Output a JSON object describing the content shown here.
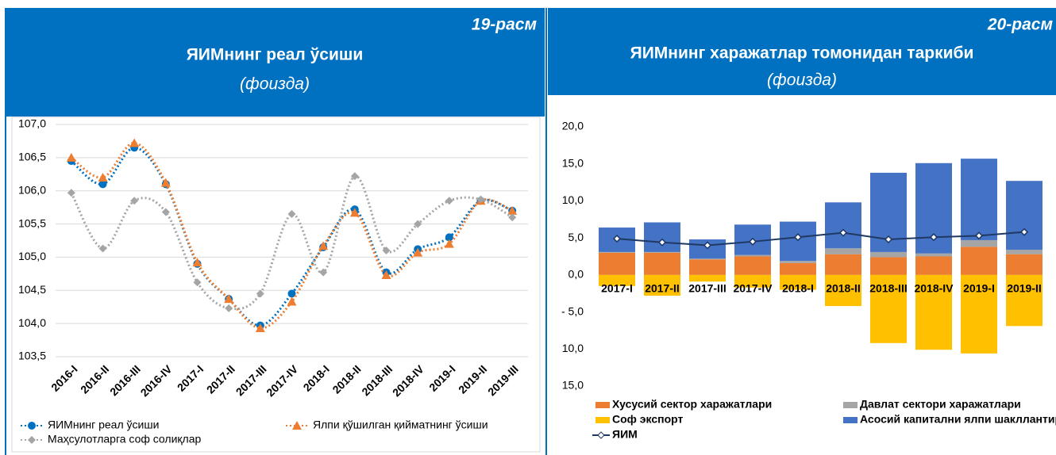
{
  "chart_data": [
    {
      "type": "line",
      "label": "19-расм",
      "title": "ЯИМнинг реал ўсиши",
      "subtitle": "(фоизда)",
      "categories": [
        "2016-I",
        "2016-II",
        "2016-III",
        "2016-IV",
        "2017-I",
        "2017-II",
        "2017-III",
        "2017-IV",
        "2018-I",
        "2018-II",
        "2018-III",
        "2018-IV",
        "2019-I",
        "2019-II",
        "2019-III"
      ],
      "series": [
        {
          "name": "ЯИМнинг реал ўсиши",
          "color": "#0070c0",
          "marker": "circle",
          "values": [
            106.45,
            106.1,
            106.65,
            106.1,
            104.9,
            104.37,
            103.97,
            104.45,
            105.15,
            105.72,
            104.77,
            105.12,
            105.3,
            105.85,
            105.7
          ]
        },
        {
          "name": "Ялпи қўшилган  қийматнинг ўсиши",
          "color": "#ed7d31",
          "marker": "triangle",
          "values": [
            106.5,
            106.2,
            106.72,
            106.12,
            104.92,
            104.37,
            103.93,
            104.33,
            105.17,
            105.67,
            104.73,
            105.07,
            105.2,
            105.85,
            105.7
          ]
        },
        {
          "name": "Маҳсулотларга соф солиқлар",
          "color": "#a5a5a5",
          "marker": "diamond",
          "values": [
            105.97,
            105.13,
            105.85,
            105.68,
            104.62,
            104.23,
            104.45,
            105.65,
            104.77,
            106.22,
            105.1,
            105.5,
            105.85,
            105.87,
            105.6
          ]
        }
      ],
      "ylim": [
        103.5,
        107.0
      ],
      "yticks": [
        {
          "value": 103.5,
          "label": "103,5"
        },
        {
          "value": 104,
          "label": "104,0"
        },
        {
          "value": 104.5,
          "label": "104,5"
        },
        {
          "value": 105,
          "label": "105,0"
        },
        {
          "value": 105.5,
          "label": "105,5"
        },
        {
          "value": 106,
          "label": "106,0"
        },
        {
          "value": 106.5,
          "label": "106,5"
        },
        {
          "value": 107,
          "label": "107,0"
        }
      ],
      "grid": true,
      "smooth": true
    },
    {
      "type": "bar",
      "stacked": true,
      "label": "20-расм",
      "title": "ЯИМнинг харажатлар томонидан таркиби",
      "subtitle": "(фоизда)",
      "categories": [
        "2017-I",
        "2017-II",
        "2017-III",
        "2017-IV",
        "2018-I",
        "2018-II",
        "2018-III",
        "2018-IV",
        "2019-I",
        "2019-II"
      ],
      "series": [
        {
          "name": "Хусусий сектор харажатлари",
          "color": "#ed7d31",
          "values": [
            3.0,
            3.0,
            2.1,
            2.5,
            1.6,
            2.8,
            2.4,
            2.5,
            3.8,
            2.8
          ]
        },
        {
          "name": "Давлат сектори харажатлари",
          "color": "#a5a5a5",
          "values": [
            0.1,
            0.1,
            0.1,
            0.2,
            0.3,
            0.8,
            0.7,
            0.4,
            0.9,
            0.6
          ]
        },
        {
          "name": "Соф экспорт",
          "color": "#ffc000",
          "values": [
            -1.5,
            -2.8,
            -0.9,
            -1.7,
            -2.0,
            -4.2,
            -9.2,
            -10.1,
            -10.6,
            -6.9
          ]
        },
        {
          "name": "Асосий капитални ялпи шакллантириш",
          "color": "#4472c4",
          "values": [
            3.3,
            4.0,
            2.6,
            4.1,
            5.3,
            6.2,
            10.7,
            12.2,
            11.0,
            9.3
          ]
        },
        {
          "name": "ЯИМ",
          "color": "#1f3864",
          "type": "line",
          "values": [
            4.9,
            4.4,
            4.0,
            4.5,
            5.1,
            5.7,
            4.8,
            5.1,
            5.3,
            5.8
          ]
        }
      ],
      "ylim": [
        -15,
        20
      ],
      "yticks": [
        {
          "value": -15,
          "label": "15,0"
        },
        {
          "value": -10,
          "label": "10,0"
        },
        {
          "value": -5,
          "label": "- 5,0"
        },
        {
          "value": 0,
          "label": "0,0"
        },
        {
          "value": 5,
          "label": "5,0"
        },
        {
          "value": 10,
          "label": "10,0"
        },
        {
          "value": 15,
          "label": "15,0"
        },
        {
          "value": 20,
          "label": "20,0"
        }
      ],
      "grid": false
    }
  ]
}
